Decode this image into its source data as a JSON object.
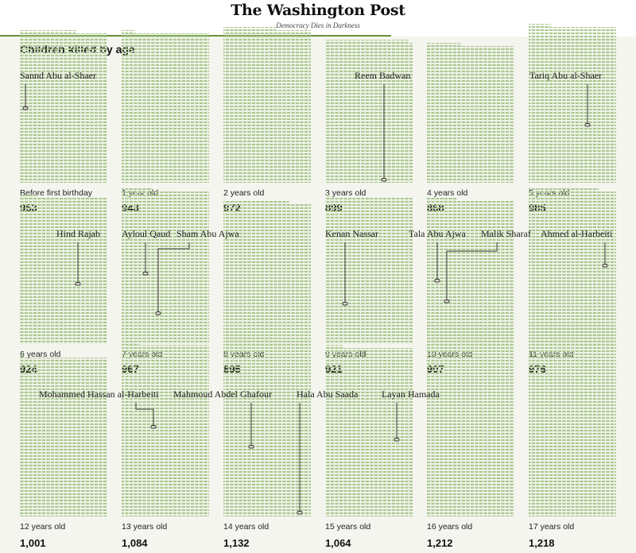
{
  "masthead": {
    "logo": "The Washington Post",
    "tagline": "Democracy Dies in Darkness"
  },
  "colors": {
    "accent_rule": "#6c8f3a",
    "dot": "#a9c88e",
    "marker": "#3a3a3a",
    "background": "#f5f5ef"
  },
  "chart_data": {
    "type": "waffle",
    "title": "Children killed by age",
    "categories": [
      "Before first birthday",
      "1 year old",
      "2 years old",
      "3 years old",
      "4 years old",
      "5 years old",
      "6 years old",
      "7 years old",
      "8 years old",
      "9 years old",
      "10 years old",
      "11 years old",
      "12 years old",
      "13 years old",
      "14 years old",
      "15 years old",
      "16 years old",
      "17 years old"
    ],
    "counts": [
      953,
      943,
      972,
      899,
      868,
      985,
      924,
      967,
      895,
      921,
      907,
      976,
      1001,
      1084,
      1132,
      1064,
      1212,
      1218
    ],
    "count_labels": [
      "953",
      "943",
      "972",
      "899",
      "868",
      "985",
      "924",
      "967",
      "895",
      "921",
      "907",
      "976",
      "1,001",
      "1,084",
      "1,132",
      "1,064",
      "1,212",
      "1,218"
    ],
    "annotations": [
      {
        "name": "Sannd Abu al-Shaer",
        "age_index": 0
      },
      {
        "name": "Reem Badwan",
        "age_index": 3
      },
      {
        "name": "Tariq Abu al-Shaer",
        "age_index": 5
      },
      {
        "name": "Hind Rajab",
        "age_index": 6
      },
      {
        "name": "Ayloul Qaud",
        "age_index": 7
      },
      {
        "name": "Sham Abu Ajwa",
        "age_index": 7
      },
      {
        "name": "Kenan Nassar",
        "age_index": 9
      },
      {
        "name": "Tala Abu Ajwa",
        "age_index": 10
      },
      {
        "name": "Malik Sharaf",
        "age_index": 10
      },
      {
        "name": "Ahmed al-Harbeiti",
        "age_index": 11
      },
      {
        "name": "Mohammed Hassan al-Harbeiti",
        "age_index": 13
      },
      {
        "name": "Mahmoud Abdel Ghafour",
        "age_index": 14
      },
      {
        "name": "Hala Abu Saada",
        "age_index": 14
      },
      {
        "name": "Layan Hamada",
        "age_index": 15
      }
    ]
  }
}
